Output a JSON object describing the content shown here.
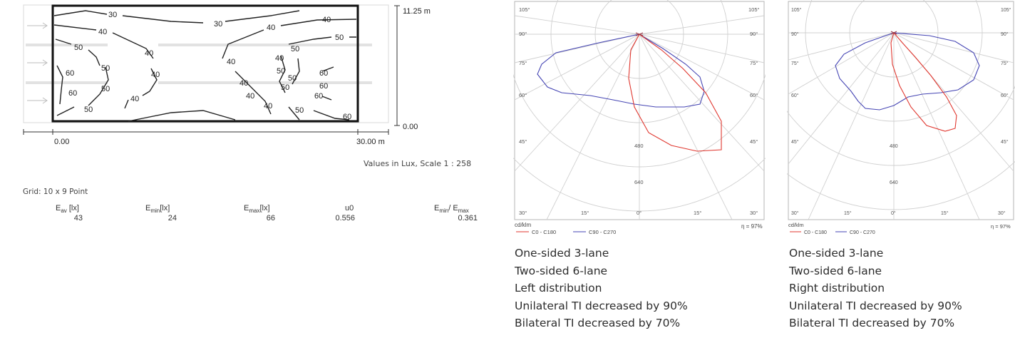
{
  "isolux": {
    "height_label": "11.25 m",
    "zero_right": "0.00",
    "x_start": "0.00",
    "x_end": "30.00 m",
    "contour_labels": [
      "30",
      "30",
      "40",
      "40",
      "40",
      "50",
      "40",
      "50",
      "50",
      "40",
      "40",
      "50",
      "60",
      "60",
      "50",
      "40",
      "50",
      "50",
      "40",
      "60",
      "50",
      "40",
      "40",
      "60",
      "60",
      "50",
      "40",
      "50",
      "60"
    ],
    "note": "Values in Lux, Scale 1 : 258",
    "grid": "Grid: 10 x 9 Point",
    "table": {
      "headers": [
        {
          "main": "E",
          "sub": "av",
          "tail": " [lx]"
        },
        {
          "main": "E",
          "sub": "min",
          "tail": "[lx]"
        },
        {
          "main": "E",
          "sub": "max",
          "tail": "[lx]"
        },
        {
          "main": "u0",
          "sub": "",
          "tail": ""
        },
        {
          "main": "E",
          "sub": "min",
          "tail": "/ E",
          "sub2": "max"
        }
      ],
      "values": [
        "43",
        "24",
        "66",
        "0.556",
        "0.361"
      ]
    }
  },
  "polar_left": {
    "angles_top": [
      "105°",
      "105°",
      "90°",
      "90°",
      "75°",
      "75°",
      "60°",
      "60°",
      "45°",
      "45°"
    ],
    "bottom_angles": [
      "30°",
      "15°",
      "0°",
      "15°",
      "30°"
    ],
    "rings": [
      "480",
      "640"
    ],
    "unit": "cd/klm",
    "legend_c0": "C0 - C180",
    "legend_c90": "C90 - C270",
    "efficiency": "η = 97%",
    "colors": {
      "c0": "#e0372f",
      "c90": "#3f3fb0",
      "grid": "#c8c8c8"
    }
  },
  "polar_right": {
    "angles_top": [
      "105°",
      "105°",
      "90°",
      "90°",
      "75°",
      "75°",
      "60°",
      "60°",
      "45°",
      "45°"
    ],
    "bottom_angles": [
      "30°",
      "15°",
      "0°",
      "15°",
      "30°"
    ],
    "rings": [
      "480",
      "640"
    ],
    "unit": "cd/klm",
    "legend_c0": "C0 - C180",
    "legend_c90": "C90 - C270",
    "efficiency": "η = 97%"
  },
  "desc_left": [
    "One-sided 3-lane",
    "Two-sided 6-lane",
    "Left distribution",
    "Unilateral TI decreased by 90%",
    "Bilateral TI decreased by 70%"
  ],
  "desc_right": [
    "One-sided 3-lane",
    "Two-sided 6-lane",
    "Right distribution",
    "Unilateral TI decreased by 90%",
    "Bilateral TI decreased by 70%"
  ]
}
